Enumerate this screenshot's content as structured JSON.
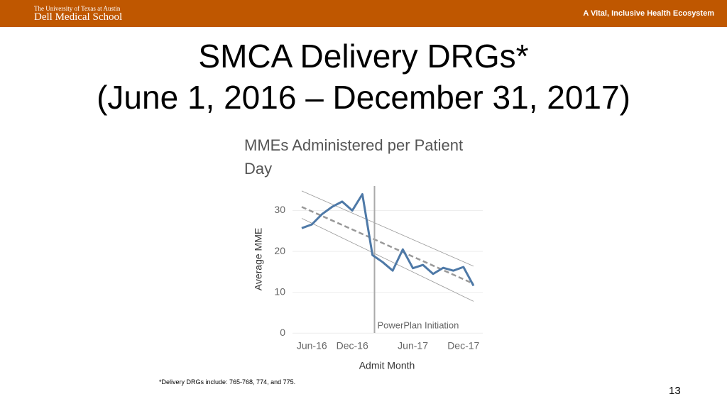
{
  "header": {
    "university": "The University of Texas at Austin",
    "school": "Dell Medical School",
    "tagline": "A Vital, Inclusive Health Ecosystem"
  },
  "slide_title": [
    "SMCA Delivery DRGs*",
    "(June 1, 2016 – December 31, 2017)"
  ],
  "footnote": "*Delivery DRGs include:  765-768, 774, and 775.",
  "page_number": "13",
  "chart_data": {
    "type": "line",
    "title": "MMEs Administered per Patient Day",
    "x_label": "Admit Month",
    "y_label": "Average MME",
    "categories": [
      null,
      "Jun-16",
      null,
      null,
      null,
      "Dec-16",
      null,
      null,
      null,
      null,
      null,
      "Jun-17",
      null,
      null,
      null,
      null,
      "Dec-17",
      null
    ],
    "series": [
      {
        "color": "#4e79a7",
        "values": [
          25.7,
          26.6,
          29.1,
          30.9,
          32.2,
          30.0,
          34.0,
          19.1,
          17.4,
          15.3,
          20.5,
          15.9,
          16.7,
          14.5,
          16.0,
          15.3,
          16.2,
          11.6
        ]
      }
    ],
    "trend": {
      "color": "#999999",
      "values": [
        30.9,
        12.1
      ],
      "upper": [
        34.8,
        16.4
      ],
      "lower": [
        28.1,
        7.8
      ]
    },
    "reference_line": {
      "x": 7.2,
      "label": "PowerPlan Initiation",
      "color": "#aaaaaa"
    },
    "ylim": [
      -1,
      36
    ],
    "yticks": [
      0,
      10,
      20,
      30
    ],
    "grid": true
  }
}
